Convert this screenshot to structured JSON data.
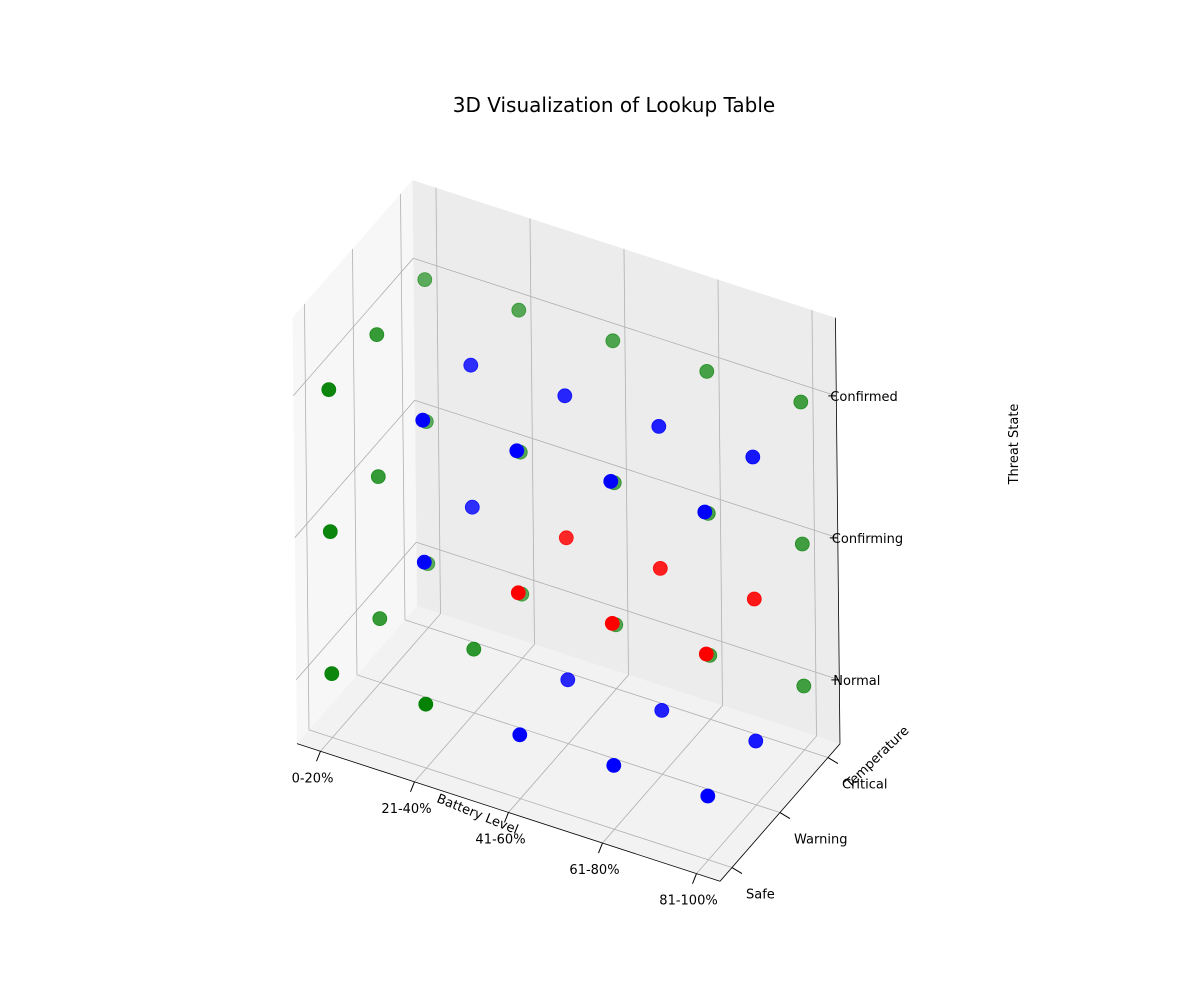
{
  "chart_data": {
    "type": "scatter",
    "title": "3D Visualization of Lookup Table",
    "xlabel": "Battery Level",
    "ylabel": "Temperature",
    "zlabel": "Threat State",
    "x_ticks": [
      "0-20%",
      "21-40%",
      "41-60%",
      "61-80%",
      "81-100%"
    ],
    "y_ticks": [
      "Safe",
      "Warning",
      "Critical"
    ],
    "z_ticks": [
      "Normal",
      "Confirming",
      "Confirmed"
    ],
    "colors": {
      "green": "#008000",
      "blue": "#0000ff",
      "red": "#ff0000"
    },
    "grid": true,
    "points": [
      {
        "battery": "0-20%",
        "temperature": "Safe",
        "threat": "Normal",
        "color": "green"
      },
      {
        "battery": "21-40%",
        "temperature": "Safe",
        "threat": "Normal",
        "color": "green"
      },
      {
        "battery": "41-60%",
        "temperature": "Safe",
        "threat": "Normal",
        "color": "blue"
      },
      {
        "battery": "61-80%",
        "temperature": "Safe",
        "threat": "Normal",
        "color": "blue"
      },
      {
        "battery": "81-100%",
        "temperature": "Safe",
        "threat": "Normal",
        "color": "blue"
      },
      {
        "battery": "0-20%",
        "temperature": "Warning",
        "threat": "Normal",
        "color": "green"
      },
      {
        "battery": "21-40%",
        "temperature": "Warning",
        "threat": "Normal",
        "color": "green"
      },
      {
        "battery": "41-60%",
        "temperature": "Warning",
        "threat": "Normal",
        "color": "blue"
      },
      {
        "battery": "61-80%",
        "temperature": "Warning",
        "threat": "Normal",
        "color": "blue"
      },
      {
        "battery": "81-100%",
        "temperature": "Warning",
        "threat": "Normal",
        "color": "blue"
      },
      {
        "battery": "0-20%",
        "temperature": "Critical",
        "threat": "Normal",
        "color": "green"
      },
      {
        "battery": "21-40%",
        "temperature": "Critical",
        "threat": "Normal",
        "color": "green"
      },
      {
        "battery": "41-60%",
        "temperature": "Critical",
        "threat": "Normal",
        "color": "green"
      },
      {
        "battery": "61-80%",
        "temperature": "Critical",
        "threat": "Normal",
        "color": "green"
      },
      {
        "battery": "81-100%",
        "temperature": "Critical",
        "threat": "Normal",
        "color": "green"
      },
      {
        "battery": "0-20%",
        "temperature": "Safe",
        "threat": "Confirming",
        "color": "green"
      },
      {
        "battery": "21-40%",
        "temperature": "Safe",
        "threat": "Confirming",
        "color": "blue"
      },
      {
        "battery": "41-60%",
        "temperature": "Safe",
        "threat": "Confirming",
        "color": "red"
      },
      {
        "battery": "61-80%",
        "temperature": "Safe",
        "threat": "Confirming",
        "color": "red"
      },
      {
        "battery": "81-100%",
        "temperature": "Safe",
        "threat": "Confirming",
        "color": "red"
      },
      {
        "battery": "0-20%",
        "temperature": "Warning",
        "threat": "Confirming",
        "color": "green"
      },
      {
        "battery": "21-40%",
        "temperature": "Warning",
        "threat": "Confirming",
        "color": "blue"
      },
      {
        "battery": "41-60%",
        "temperature": "Warning",
        "threat": "Confirming",
        "color": "red"
      },
      {
        "battery": "61-80%",
        "temperature": "Warning",
        "threat": "Confirming",
        "color": "red"
      },
      {
        "battery": "81-100%",
        "temperature": "Warning",
        "threat": "Confirming",
        "color": "red"
      },
      {
        "battery": "0-20%",
        "temperature": "Critical",
        "threat": "Confirming",
        "color": "green"
      },
      {
        "battery": "21-40%",
        "temperature": "Critical",
        "threat": "Confirming",
        "color": "green"
      },
      {
        "battery": "41-60%",
        "temperature": "Critical",
        "threat": "Confirming",
        "color": "green"
      },
      {
        "battery": "61-80%",
        "temperature": "Critical",
        "threat": "Confirming",
        "color": "green"
      },
      {
        "battery": "81-100%",
        "temperature": "Critical",
        "threat": "Confirming",
        "color": "green"
      },
      {
        "battery": "0-20%",
        "temperature": "Safe",
        "threat": "Confirmed",
        "color": "green"
      },
      {
        "battery": "21-40%",
        "temperature": "Safe",
        "threat": "Confirmed",
        "color": "blue"
      },
      {
        "battery": "41-60%",
        "temperature": "Safe",
        "threat": "Confirmed",
        "color": "blue"
      },
      {
        "battery": "61-80%",
        "temperature": "Safe",
        "threat": "Confirmed",
        "color": "blue"
      },
      {
        "battery": "81-100%",
        "temperature": "Safe",
        "threat": "Confirmed",
        "color": "blue"
      },
      {
        "battery": "0-20%",
        "temperature": "Warning",
        "threat": "Confirmed",
        "color": "green"
      },
      {
        "battery": "21-40%",
        "temperature": "Warning",
        "threat": "Confirmed",
        "color": "blue"
      },
      {
        "battery": "41-60%",
        "temperature": "Warning",
        "threat": "Confirmed",
        "color": "blue"
      },
      {
        "battery": "61-80%",
        "temperature": "Warning",
        "threat": "Confirmed",
        "color": "blue"
      },
      {
        "battery": "81-100%",
        "temperature": "Warning",
        "threat": "Confirmed",
        "color": "blue"
      },
      {
        "battery": "0-20%",
        "temperature": "Critical",
        "threat": "Confirmed",
        "color": "green"
      },
      {
        "battery": "21-40%",
        "temperature": "Critical",
        "threat": "Confirmed",
        "color": "green"
      },
      {
        "battery": "41-60%",
        "temperature": "Critical",
        "threat": "Confirmed",
        "color": "green"
      },
      {
        "battery": "61-80%",
        "temperature": "Critical",
        "threat": "Confirmed",
        "color": "green"
      },
      {
        "battery": "81-100%",
        "temperature": "Critical",
        "threat": "Confirmed",
        "color": "green"
      }
    ]
  }
}
